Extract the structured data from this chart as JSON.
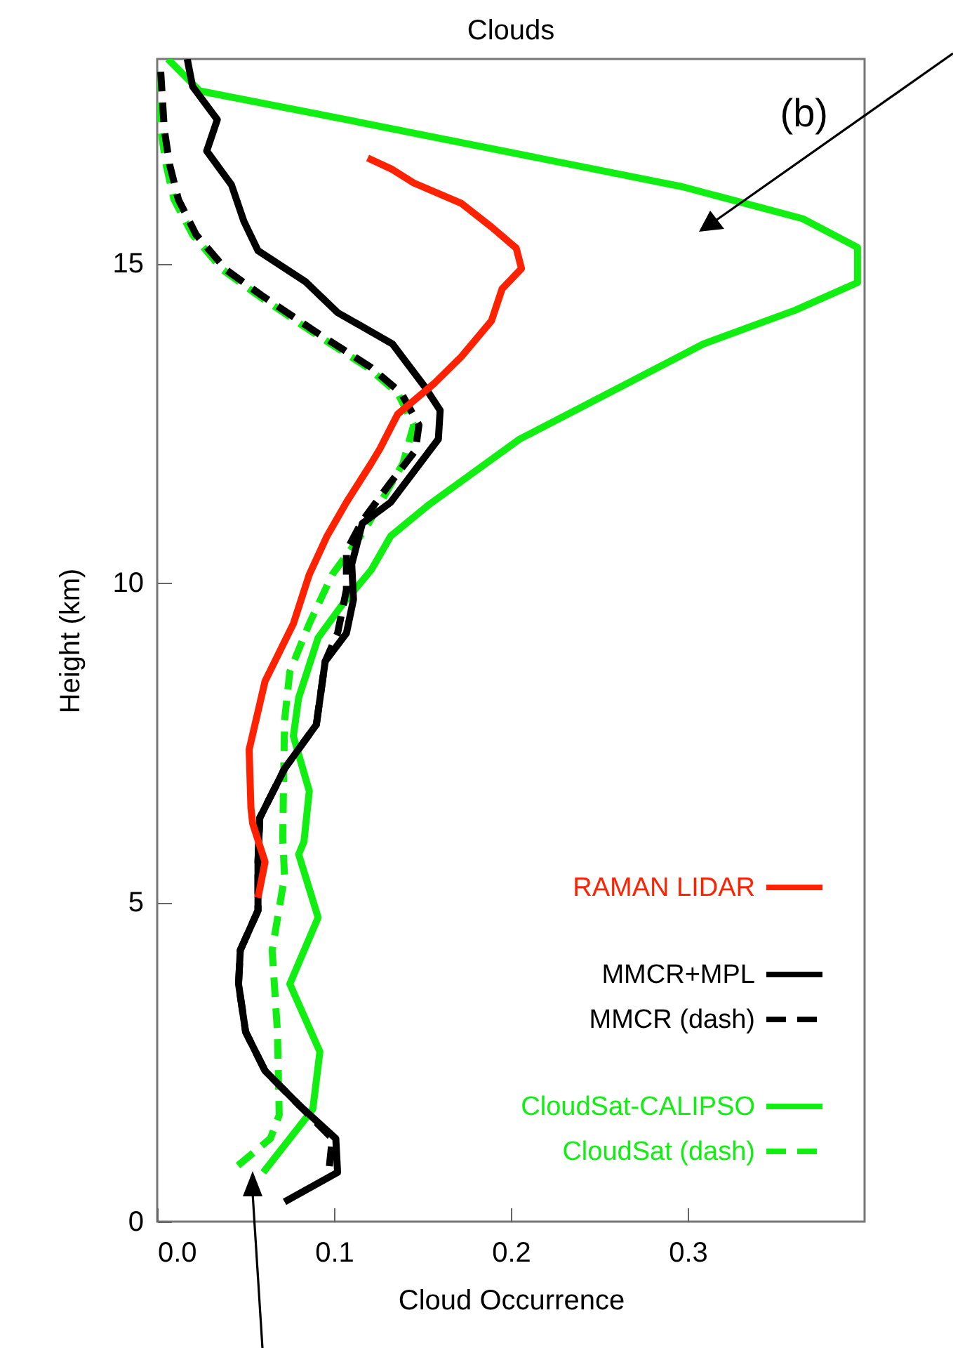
{
  "chart_data": {
    "type": "line",
    "title": "Clouds",
    "xlabel": "Cloud Occurrence",
    "ylabel": "Height (km)",
    "annotations": [
      "(b)"
    ],
    "xlim": [
      0,
      0.4
    ],
    "xticks": [
      {
        "value": 0,
        "label": "0.0"
      },
      0.1,
      0.2,
      0.3
    ],
    "ylim": [
      0,
      18.2
    ],
    "yticks": [
      0,
      5,
      10,
      15
    ],
    "grid": false,
    "legend": "bottom right",
    "marker": "none",
    "series": [
      {
        "name": "RAMAN LIDAR",
        "color": "#ff2200",
        "line_style": "solid",
        "x": [
          0.119,
          0.133,
          0.145,
          0.172,
          0.189,
          0.203,
          0.206,
          0.195,
          0.189,
          0.172,
          0.157,
          0.136,
          0.126,
          0.121,
          0.107,
          0.096,
          0.086,
          0.077,
          0.061,
          0.052,
          0.053,
          0.054,
          0.061,
          0.057
        ],
        "values": [
          16.65,
          16.47,
          16.26,
          15.94,
          15.57,
          15.24,
          14.92,
          14.6,
          14.1,
          13.54,
          13.13,
          12.64,
          12.1,
          11.87,
          11.26,
          10.73,
          10.13,
          9.36,
          8.46,
          7.39,
          6.48,
          6.23,
          5.63,
          5.07
        ]
      },
      {
        "name": "MMCR+MPL",
        "color": "#000000",
        "line_style": "solid",
        "x": [
          0.017,
          0.02,
          0.034,
          0.028,
          0.042,
          0.049,
          0.057,
          0.084,
          0.102,
          0.133,
          0.151,
          0.16,
          0.159,
          0.132,
          0.116,
          0.11,
          0.111,
          0.107,
          0.095,
          0.09,
          0.072,
          0.058,
          0.057,
          0.057,
          0.047,
          0.046,
          0.05,
          0.061,
          0.08,
          0.101,
          0.102,
          0.072
        ],
        "values": [
          18.2,
          17.77,
          17.25,
          16.76,
          16.23,
          15.66,
          15.2,
          14.71,
          14.23,
          13.74,
          13.08,
          12.7,
          12.25,
          11.26,
          10.93,
          10.29,
          9.74,
          9.21,
          8.77,
          7.78,
          7.09,
          6.32,
          5.63,
          4.87,
          4.25,
          3.72,
          2.97,
          2.36,
          1.83,
          1.3,
          0.77,
          0.31
        ]
      },
      {
        "name": "MMCR (dash)",
        "color": "#000000",
        "line_style": "dashed",
        "x": [
          0.002,
          0.004,
          0.007,
          0.012,
          0.022,
          0.039,
          0.059,
          0.089,
          0.121,
          0.138,
          0.148,
          0.146,
          0.132,
          0.116,
          0.107,
          0.107,
          0.102,
          0.095,
          0.09,
          0.072,
          0.058,
          0.057,
          0.057,
          0.047,
          0.046,
          0.05,
          0.061,
          0.08,
          0.099,
          0.097
        ],
        "values": [
          18.0,
          17.1,
          16.55,
          16.0,
          15.45,
          14.9,
          14.5,
          13.94,
          13.37,
          12.97,
          12.47,
          12.07,
          11.57,
          10.97,
          10.5,
          9.89,
          9.21,
          8.77,
          7.78,
          7.09,
          6.32,
          5.63,
          4.87,
          4.25,
          3.72,
          2.97,
          2.36,
          1.83,
          1.3,
          0.77
        ]
      },
      {
        "name": "CloudSat-CALIPSO",
        "color": "#11ee11",
        "line_style": "solid",
        "x": [
          0.006,
          0.024,
          0.107,
          0.297,
          0.365,
          0.396,
          0.396,
          0.361,
          0.309,
          0.205,
          0.154,
          0.132,
          0.121,
          0.105,
          0.091,
          0.08,
          0.077,
          0.086,
          0.083,
          0.08,
          0.091,
          0.075,
          0.092,
          0.088,
          0.06
        ],
        "values": [
          18.2,
          17.7,
          17.25,
          16.2,
          15.7,
          15.25,
          14.7,
          14.27,
          13.74,
          12.25,
          11.23,
          10.73,
          10.2,
          9.67,
          9.14,
          8.2,
          7.6,
          6.74,
          5.95,
          5.75,
          4.76,
          3.72,
          2.66,
          1.76,
          0.77
        ]
      },
      {
        "name": "CloudSat (dash)",
        "color": "#11ee11",
        "line_style": "dashed",
        "x": [
          0.0,
          0.002,
          0.005,
          0.0095,
          0.02,
          0.037,
          0.057,
          0.087,
          0.119,
          0.136,
          0.145,
          0.139,
          0.117,
          0.099,
          0.086,
          0.075,
          0.072,
          0.071,
          0.072,
          0.065,
          0.068,
          0.069,
          0.064,
          0.041
        ],
        "values": [
          18.0,
          17.1,
          16.55,
          16.0,
          15.45,
          14.9,
          14.5,
          13.94,
          13.37,
          12.97,
          12.47,
          11.87,
          10.81,
          10.13,
          9.36,
          8.61,
          7.84,
          6.01,
          5.4,
          4.25,
          2.97,
          1.67,
          1.3,
          0.77
        ]
      }
    ]
  }
}
